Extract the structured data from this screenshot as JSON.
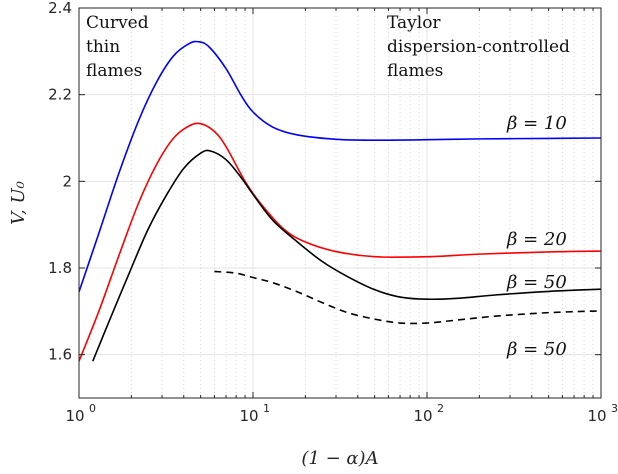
{
  "chart_data": {
    "type": "line",
    "xscale": "log",
    "xlim": [
      1,
      1000
    ],
    "ylim": [
      1.5,
      2.4
    ],
    "xlabel": "(1 − α)A",
    "ylabel": "V, U₀",
    "x_ticks": [
      {
        "value": 1,
        "base": "10",
        "exp": "0"
      },
      {
        "value": 10,
        "base": "10",
        "exp": "1"
      },
      {
        "value": 100,
        "base": "10",
        "exp": "2"
      },
      {
        "value": 1000,
        "base": "10",
        "exp": "3"
      }
    ],
    "y_ticks": [
      {
        "value": 1.6,
        "label": "1.6"
      },
      {
        "value": 1.8,
        "label": "1.8"
      },
      {
        "value": 2.0,
        "label": "2"
      },
      {
        "value": 2.2,
        "label": "2.2"
      },
      {
        "value": 2.4,
        "label": "2.4"
      }
    ],
    "grid": true,
    "annotations": [
      {
        "id": "curved",
        "lines": [
          "Curved",
          "thin",
          "flames"
        ]
      },
      {
        "id": "taylor",
        "lines": [
          "Taylor",
          "dispersion-controlled",
          "flames"
        ]
      }
    ],
    "series": [
      {
        "label": "β = 10",
        "color": "#0000ff",
        "dash": "solid",
        "points": [
          [
            1,
            1.745
          ],
          [
            1.3,
            1.88
          ],
          [
            1.7,
            2.02
          ],
          [
            2.2,
            2.14
          ],
          [
            2.8,
            2.23
          ],
          [
            3.5,
            2.29
          ],
          [
            4.3,
            2.318
          ],
          [
            4.9,
            2.322
          ],
          [
            5.6,
            2.31
          ],
          [
            7,
            2.26
          ],
          [
            8.5,
            2.2
          ],
          [
            10,
            2.16
          ],
          [
            13,
            2.125
          ],
          [
            18,
            2.107
          ],
          [
            30,
            2.097
          ],
          [
            50,
            2.095
          ],
          [
            100,
            2.096
          ],
          [
            200,
            2.098
          ],
          [
            500,
            2.099
          ],
          [
            1000,
            2.1
          ]
        ]
      },
      {
        "label": "β = 20",
        "color": "#ff0000",
        "dash": "solid",
        "points": [
          [
            1,
            1.585
          ],
          [
            1.3,
            1.7
          ],
          [
            1.7,
            1.83
          ],
          [
            2.2,
            1.95
          ],
          [
            2.8,
            2.04
          ],
          [
            3.5,
            2.1
          ],
          [
            4.3,
            2.128
          ],
          [
            5,
            2.133
          ],
          [
            6,
            2.115
          ],
          [
            7,
            2.08
          ],
          [
            9,
            2.0
          ],
          [
            11,
            1.95
          ],
          [
            15,
            1.89
          ],
          [
            20,
            1.86
          ],
          [
            30,
            1.838
          ],
          [
            50,
            1.826
          ],
          [
            100,
            1.826
          ],
          [
            200,
            1.832
          ],
          [
            500,
            1.837
          ],
          [
            1000,
            1.839
          ]
        ]
      },
      {
        "label": "β = 50",
        "color": "#000000",
        "dash": "solid",
        "points": [
          [
            1.2,
            1.585
          ],
          [
            1.5,
            1.68
          ],
          [
            2,
            1.8
          ],
          [
            2.5,
            1.89
          ],
          [
            3.2,
            1.97
          ],
          [
            4,
            2.03
          ],
          [
            5,
            2.065
          ],
          [
            5.7,
            2.07
          ],
          [
            7,
            2.05
          ],
          [
            8.5,
            2.01
          ],
          [
            10,
            1.97
          ],
          [
            13,
            1.91
          ],
          [
            18,
            1.86
          ],
          [
            25,
            1.815
          ],
          [
            35,
            1.78
          ],
          [
            50,
            1.75
          ],
          [
            70,
            1.733
          ],
          [
            100,
            1.728
          ],
          [
            150,
            1.73
          ],
          [
            250,
            1.738
          ],
          [
            500,
            1.746
          ],
          [
            1000,
            1.751
          ]
        ]
      },
      {
        "label": "β = 50",
        "color": "#000000",
        "dash": "dashed",
        "points": [
          [
            6,
            1.792
          ],
          [
            8,
            1.788
          ],
          [
            10,
            1.778
          ],
          [
            13,
            1.766
          ],
          [
            18,
            1.745
          ],
          [
            25,
            1.72
          ],
          [
            35,
            1.697
          ],
          [
            50,
            1.682
          ],
          [
            70,
            1.673
          ],
          [
            100,
            1.673
          ],
          [
            150,
            1.68
          ],
          [
            250,
            1.689
          ],
          [
            500,
            1.697
          ],
          [
            1000,
            1.701
          ]
        ]
      }
    ]
  }
}
